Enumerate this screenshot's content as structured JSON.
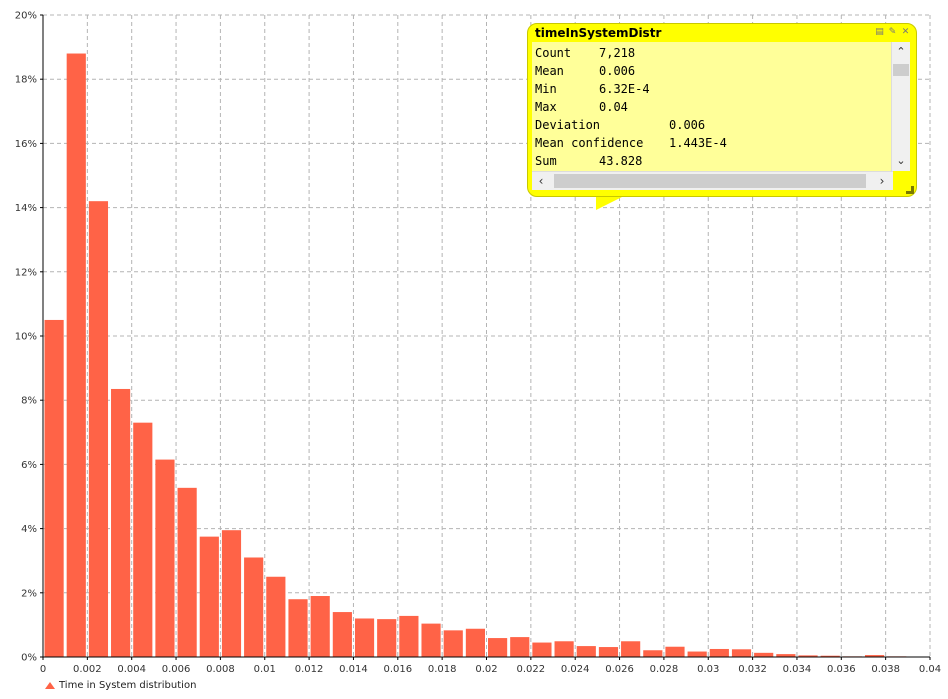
{
  "chart_data": {
    "type": "bar",
    "title": "",
    "xlabel": "",
    "ylabel": "",
    "xlim": [
      0,
      0.04
    ],
    "ylim": [
      0,
      0.2
    ],
    "x_ticks": [
      {
        "value": 0,
        "label": "0"
      },
      {
        "value": 0.002,
        "label": "0.002"
      },
      {
        "value": 0.004,
        "label": "0.004"
      },
      {
        "value": 0.006,
        "label": "0.006"
      },
      {
        "value": 0.008,
        "label": "0.008"
      },
      {
        "value": 0.01,
        "label": "0.01"
      },
      {
        "value": 0.012,
        "label": "0.012"
      },
      {
        "value": 0.014,
        "label": "0.014"
      },
      {
        "value": 0.016,
        "label": "0.016"
      },
      {
        "value": 0.018,
        "label": "0.018"
      },
      {
        "value": 0.02,
        "label": "0.02"
      },
      {
        "value": 0.022,
        "label": "0.022"
      },
      {
        "value": 0.024,
        "label": "0.024"
      },
      {
        "value": 0.026,
        "label": "0.026"
      },
      {
        "value": 0.028,
        "label": "0.028"
      },
      {
        "value": 0.03,
        "label": "0.03"
      },
      {
        "value": 0.032,
        "label": "0.032"
      },
      {
        "value": 0.034,
        "label": "0.034"
      },
      {
        "value": 0.036,
        "label": "0.036"
      },
      {
        "value": 0.038,
        "label": "0.038"
      },
      {
        "value": 0.04,
        "label": "0.04"
      }
    ],
    "y_ticks": [
      {
        "value": 0,
        "label": "0%"
      },
      {
        "value": 0.02,
        "label": "2%"
      },
      {
        "value": 0.04,
        "label": "4%"
      },
      {
        "value": 0.06,
        "label": "6%"
      },
      {
        "value": 0.08,
        "label": "8%"
      },
      {
        "value": 0.1,
        "label": "10%"
      },
      {
        "value": 0.12,
        "label": "12%"
      },
      {
        "value": 0.14,
        "label": "14%"
      },
      {
        "value": 0.16,
        "label": "16%"
      },
      {
        "value": 0.18,
        "label": "18%"
      },
      {
        "value": 0.2,
        "label": "20%"
      }
    ],
    "grid": true,
    "bin_width": 0.001,
    "series": [
      {
        "name": "Time in System distribution",
        "color": "#ff6347",
        "bins": [
          {
            "x0": 0.0,
            "value": 0.105
          },
          {
            "x0": 0.001,
            "value": 0.188
          },
          {
            "x0": 0.002,
            "value": 0.142
          },
          {
            "x0": 0.003,
            "value": 0.0835
          },
          {
            "x0": 0.004,
            "value": 0.073
          },
          {
            "x0": 0.005,
            "value": 0.0615
          },
          {
            "x0": 0.006,
            "value": 0.0527
          },
          {
            "x0": 0.007,
            "value": 0.0375
          },
          {
            "x0": 0.008,
            "value": 0.0395
          },
          {
            "x0": 0.009,
            "value": 0.031
          },
          {
            "x0": 0.01,
            "value": 0.025
          },
          {
            "x0": 0.011,
            "value": 0.018
          },
          {
            "x0": 0.012,
            "value": 0.019
          },
          {
            "x0": 0.013,
            "value": 0.014
          },
          {
            "x0": 0.014,
            "value": 0.012
          },
          {
            "x0": 0.015,
            "value": 0.0118
          },
          {
            "x0": 0.016,
            "value": 0.0128
          },
          {
            "x0": 0.017,
            "value": 0.0104
          },
          {
            "x0": 0.018,
            "value": 0.0083
          },
          {
            "x0": 0.019,
            "value": 0.0088
          },
          {
            "x0": 0.02,
            "value": 0.0059
          },
          {
            "x0": 0.021,
            "value": 0.0062
          },
          {
            "x0": 0.022,
            "value": 0.0045
          },
          {
            "x0": 0.023,
            "value": 0.0049
          },
          {
            "x0": 0.024,
            "value": 0.0034
          },
          {
            "x0": 0.025,
            "value": 0.0031
          },
          {
            "x0": 0.026,
            "value": 0.0049
          },
          {
            "x0": 0.027,
            "value": 0.0021
          },
          {
            "x0": 0.028,
            "value": 0.0032
          },
          {
            "x0": 0.029,
            "value": 0.0017
          },
          {
            "x0": 0.03,
            "value": 0.0025
          },
          {
            "x0": 0.031,
            "value": 0.0024
          },
          {
            "x0": 0.032,
            "value": 0.0013
          },
          {
            "x0": 0.033,
            "value": 0.0009
          },
          {
            "x0": 0.034,
            "value": 0.0005
          },
          {
            "x0": 0.035,
            "value": 0.0004
          },
          {
            "x0": 0.036,
            "value": 0.0002
          },
          {
            "x0": 0.037,
            "value": 0.0006
          },
          {
            "x0": 0.038,
            "value": 0.0002
          },
          {
            "x0": 0.039,
            "value": 0.0
          }
        ]
      }
    ]
  },
  "legend": {
    "label": "Time in System distribution"
  },
  "inspect": {
    "title": "timeInSystemDistr",
    "rows": [
      {
        "key": "Count",
        "value": "7,218"
      },
      {
        "key": "Mean",
        "value": "0.006"
      },
      {
        "key": "Min",
        "value": "6.32E-4"
      },
      {
        "key": "Max",
        "value": "0.04"
      },
      {
        "key": "Deviation",
        "value": "0.006"
      },
      {
        "key": "Mean confidence",
        "value": "1.443E-4"
      },
      {
        "key": "Sum",
        "value": "43.828"
      }
    ]
  }
}
